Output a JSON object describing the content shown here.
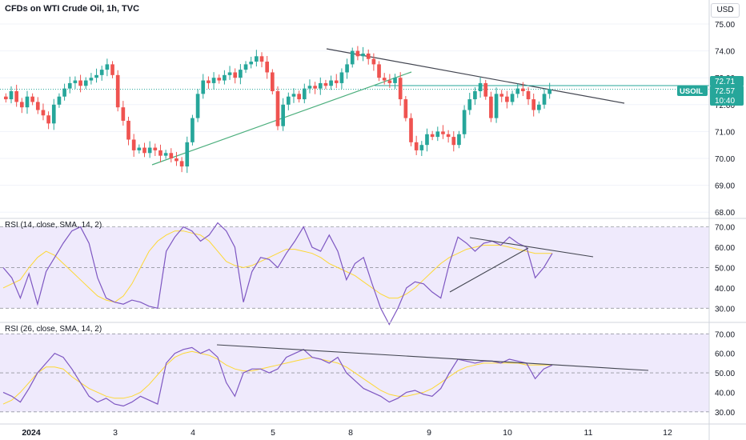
{
  "header": {
    "symbol_title": "CFDs on WTI Crude Oil, 1h, TVC"
  },
  "currency_label": "USD",
  "colors": {
    "up": "#26a69a",
    "down": "#ef5350",
    "rsi_line": "#7e57c2",
    "rsi_ma": "#fdd835",
    "trend": "#434651",
    "support": "#4caf7d",
    "band_fill": "#efeafc"
  },
  "price_axis": {
    "ticks": [
      "75.00",
      "74.00",
      "73.00",
      "72.00",
      "71.00",
      "70.00",
      "69.00",
      "68.00"
    ]
  },
  "price_labels": {
    "high_value": "72.71",
    "symbol": "USOIL",
    "last_price": "72.57",
    "countdown": "10:40"
  },
  "rsi14": {
    "title": "RSI (14, close, SMA, 14, 2)",
    "ticks": [
      "70.00",
      "60.00",
      "50.00",
      "40.00",
      "30.00"
    ]
  },
  "rsi26": {
    "title": "RSI (26, close, SMA, 14, 2)",
    "ticks": [
      "70.00",
      "60.00",
      "50.00",
      "40.00",
      "30.00"
    ]
  },
  "time_axis": {
    "labels": [
      "2024",
      "3",
      "4",
      "5",
      "8",
      "9",
      "10",
      "11",
      "12"
    ]
  },
  "chart_data": {
    "type": "candlestick",
    "price_range": [
      68,
      75.3
    ],
    "candles_close": [
      72.2,
      72.5,
      72.1,
      71.9,
      72.3,
      72.1,
      71.8,
      71.6,
      71.3,
      72.0,
      72.3,
      72.6,
      72.8,
      72.9,
      72.7,
      72.9,
      73.0,
      73.1,
      73.3,
      73.5,
      73.1,
      71.9,
      71.4,
      70.7,
      70.3,
      70.4,
      70.2,
      70.4,
      70.3,
      70.1,
      70.2,
      70.0,
      69.9,
      69.7,
      70.6,
      71.5,
      72.4,
      72.9,
      72.8,
      73.0,
      72.9,
      73.1,
      73.2,
      73.0,
      73.3,
      73.5,
      73.6,
      73.8,
      73.6,
      73.2,
      72.5,
      71.2,
      72.0,
      72.3,
      72.4,
      72.2,
      72.6,
      72.7,
      72.6,
      72.8,
      72.7,
      72.9,
      72.8,
      73.2,
      73.5,
      74.0,
      73.8,
      73.9,
      73.7,
      73.5,
      73.0,
      72.9,
      72.8,
      73.0,
      72.2,
      71.5,
      70.6,
      70.3,
      70.5,
      70.9,
      70.8,
      71.0,
      70.9,
      70.8,
      70.5,
      70.9,
      71.8,
      72.2,
      72.5,
      72.8,
      72.3,
      71.5,
      72.4,
      72.3,
      72.1,
      72.4,
      72.6,
      72.5,
      72.2,
      71.8,
      72.0,
      72.4,
      72.57
    ],
    "rsi14": [
      50,
      45,
      35,
      47,
      32,
      48,
      55,
      62,
      68,
      70,
      62,
      45,
      35,
      33,
      32,
      34,
      33,
      31,
      30,
      58,
      65,
      70,
      68,
      63,
      66,
      72,
      68,
      60,
      33,
      48,
      55,
      54,
      50,
      57,
      63,
      70,
      60,
      58,
      66,
      58,
      44,
      52,
      55,
      42,
      30,
      22,
      30,
      40,
      43,
      42,
      38,
      35,
      52,
      65,
      62,
      58,
      62,
      63,
      61,
      65,
      62,
      60,
      45,
      50,
      57
    ],
    "rsi14_ma": [
      40,
      42,
      44,
      50,
      55,
      58,
      56,
      52,
      48,
      44,
      40,
      36,
      34,
      33,
      36,
      42,
      50,
      58,
      63,
      66,
      68,
      68,
      67,
      66,
      63,
      58,
      53,
      51,
      50,
      51,
      53,
      55,
      57,
      59,
      59,
      58,
      57,
      55,
      52,
      50,
      48,
      46,
      43,
      40,
      37,
      35,
      35,
      37,
      40,
      44,
      48,
      52,
      55,
      57,
      59,
      60,
      61,
      61,
      61,
      60,
      59,
      58,
      57,
      57,
      57
    ],
    "rsi26": [
      40,
      38,
      35,
      42,
      50,
      55,
      60,
      58,
      52,
      45,
      38,
      35,
      37,
      34,
      33,
      35,
      38,
      36,
      34,
      55,
      60,
      62,
      63,
      60,
      62,
      58,
      45,
      38,
      50,
      52,
      52,
      50,
      52,
      58,
      60,
      62,
      58,
      57,
      55,
      58,
      50,
      46,
      42,
      40,
      38,
      35,
      37,
      40,
      41,
      39,
      38,
      42,
      50,
      57,
      56,
      55,
      56,
      56,
      55,
      57,
      56,
      55,
      47,
      52,
      54
    ],
    "rsi26_ma": [
      34,
      36,
      40,
      45,
      50,
      53,
      53,
      52,
      48,
      45,
      42,
      40,
      38,
      37,
      37,
      38,
      40,
      44,
      49,
      54,
      58,
      60,
      61,
      60,
      59,
      57,
      54,
      52,
      51,
      51,
      52,
      53,
      54,
      55,
      56,
      57,
      58,
      57,
      56,
      55,
      53,
      50,
      47,
      44,
      41,
      39,
      38,
      38,
      39,
      40,
      42,
      45,
      48,
      51,
      53,
      54,
      55,
      55,
      55,
      55,
      55,
      54,
      54,
      54,
      54
    ]
  }
}
